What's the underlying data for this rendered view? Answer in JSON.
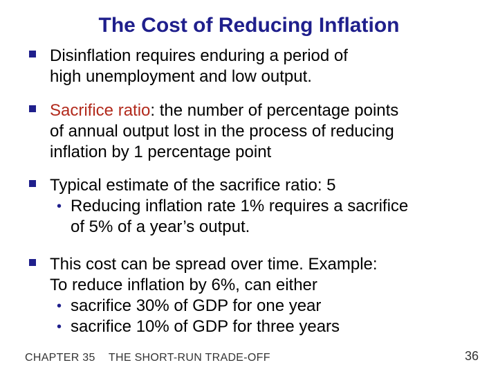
{
  "slide": {
    "title": "The Cost of Reducing Inflation",
    "bullets": [
      {
        "lines": [
          "Disinflation requires enduring a period of",
          "high unemployment and low output."
        ]
      },
      {
        "term": "Sacrifice ratio",
        "first_line_rest": ":  the number of percentage points",
        "lines": [
          "of annual output lost in the process of reducing",
          "inflation by 1 percentage point"
        ]
      },
      {
        "lines": [
          "Typical estimate of the sacrifice ratio:  5"
        ],
        "sub": [
          [
            "Reducing inflation rate 1% requires a sacrifice",
            "of 5% of a year’s output."
          ]
        ]
      },
      {
        "lines": [
          "This cost can be spread over time.  Example:",
          "To reduce inflation by 6%, can either"
        ],
        "sub": [
          [
            "sacrifice 30% of GDP for one year"
          ],
          [
            "sacrifice 10% of GDP for three years"
          ]
        ]
      }
    ]
  },
  "footer": {
    "chapter": "CHAPTER 35",
    "section": "THE SHORT-RUN TRADE-OFF",
    "page": "36"
  },
  "colors": {
    "title": "#1f1f8c",
    "term": "#b22a1c",
    "bullet": "#1f1f8c"
  },
  "icons": {
    "bullet_level1": "square-bullet-icon",
    "bullet_level2": "round-bullet-icon"
  }
}
